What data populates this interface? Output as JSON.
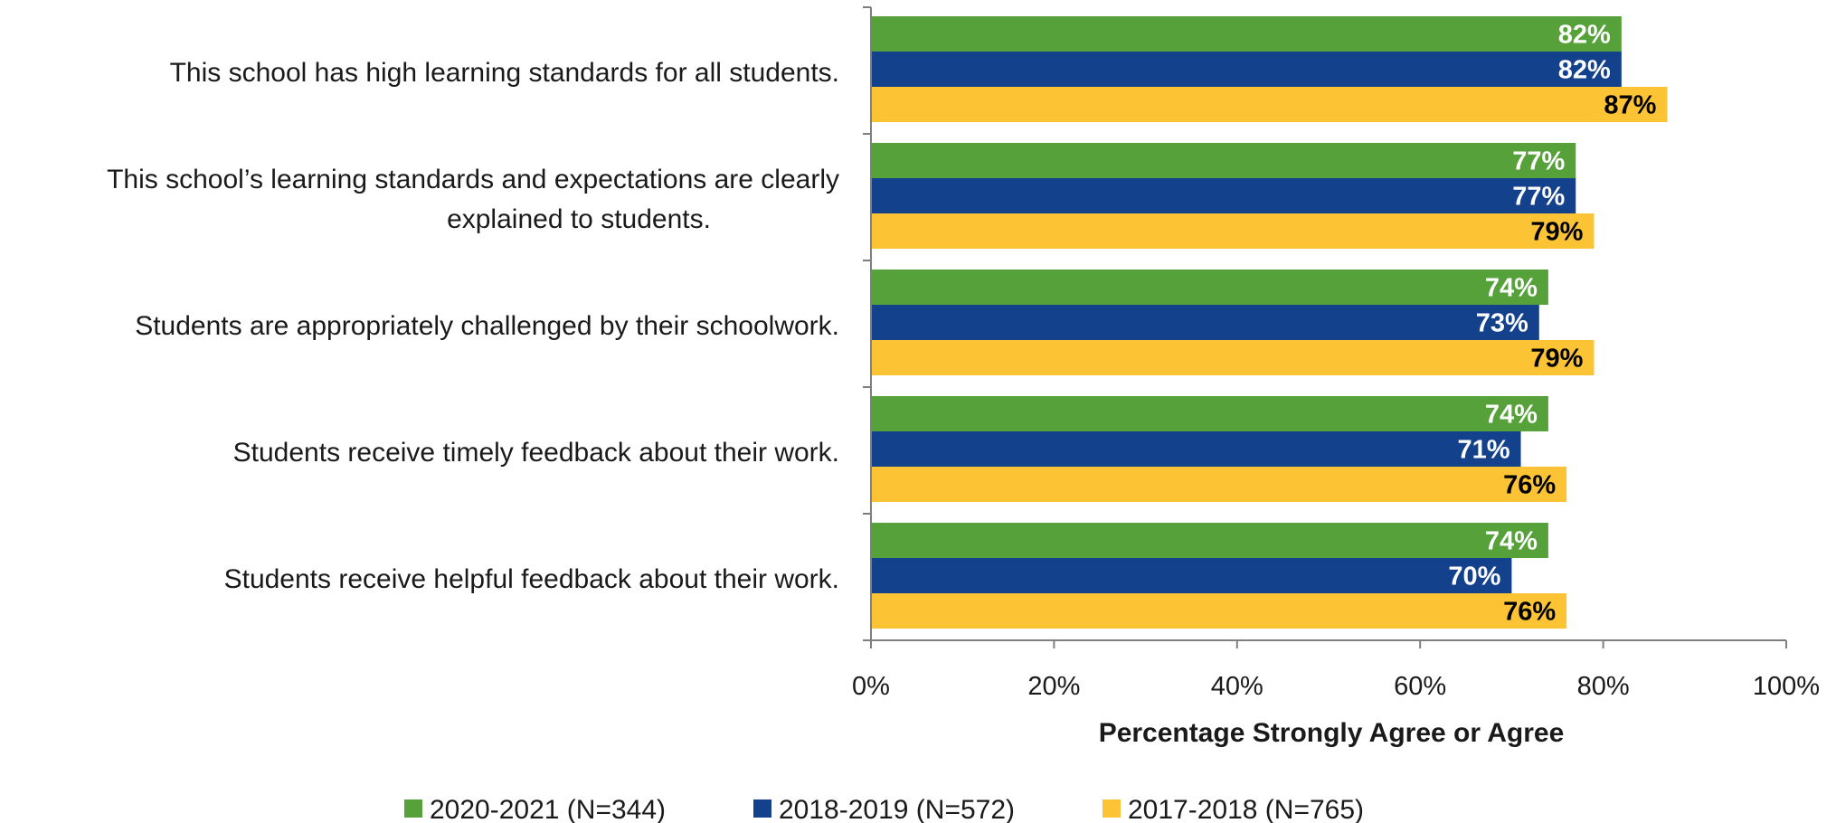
{
  "chart_data": {
    "type": "bar",
    "orientation": "horizontal",
    "categories": [
      [
        "This school has high learning standards for all students."
      ],
      [
        "This school’s learning standards and expectations are clearly",
        "explained to students."
      ],
      [
        "Students are appropriately challenged by their schoolwork."
      ],
      [
        "Students receive timely feedback about their work."
      ],
      [
        "Students receive helpful feedback about their work."
      ]
    ],
    "series": [
      {
        "name": "2020-2021 (N=344)",
        "color": "#56a13a",
        "label_color": "#ffffff",
        "values": [
          82,
          77,
          74,
          74,
          74
        ]
      },
      {
        "name": "2018-2019 (N=572)",
        "color": "#13418b",
        "label_color": "#ffffff",
        "values": [
          82,
          77,
          73,
          71,
          70
        ]
      },
      {
        "name": "2017-2018 (N=765)",
        "color": "#fcc434",
        "label_color": "#000000",
        "values": [
          87,
          79,
          79,
          76,
          76
        ]
      }
    ],
    "xlim": [
      0,
      100
    ],
    "xticks": [
      "0%",
      "20%",
      "40%",
      "60%",
      "80%",
      "100%"
    ],
    "xlabel": "Percentage Strongly Agree or Agree",
    "value_suffix": "%",
    "grid": false,
    "legend_position": "bottom"
  }
}
